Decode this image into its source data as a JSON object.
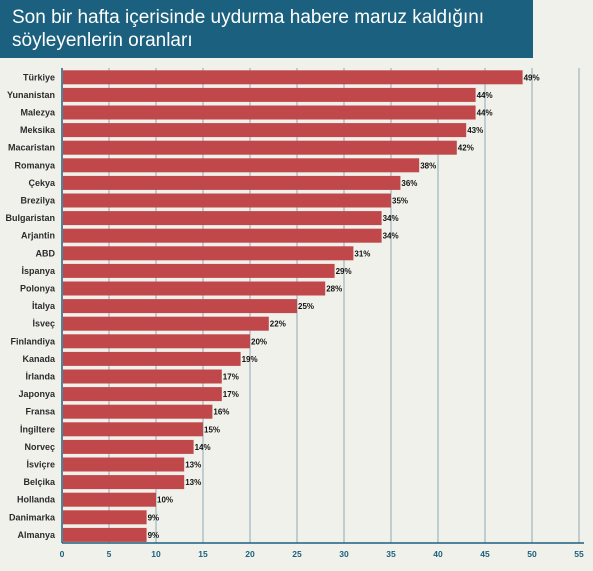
{
  "title": "Son bir hafta içerisinde uydurma habere maruz kaldığını söyleyenlerin oranları",
  "colors": {
    "bar": "#c0474a",
    "banner": "#1b607e",
    "grid": "#8fa9b5",
    "axis": "#1b607e",
    "background": "#f1f1ec"
  },
  "chart_data": {
    "type": "bar",
    "orientation": "horizontal",
    "title": "Son bir hafta içerisinde uydurma habere maruz kaldığını söyleyenlerin oranları",
    "categories": [
      "Türkiye",
      "Yunanistan",
      "Malezya",
      "Meksika",
      "Macaristan",
      "Romanya",
      "Çekya",
      "Brezilya",
      "Bulgaristan",
      "Arjantin",
      "ABD",
      "İspanya",
      "Polonya",
      "İtalya",
      "İsveç",
      "Finlandiya",
      "Kanada",
      "İrlanda",
      "Japonya",
      "Fransa",
      "İngiltere",
      "Norveç",
      "İsviçre",
      "Belçika",
      "Hollanda",
      "Danimarka",
      "Almanya"
    ],
    "values": [
      49,
      44,
      44,
      43,
      42,
      38,
      36,
      35,
      34,
      34,
      31,
      29,
      28,
      25,
      22,
      20,
      19,
      17,
      17,
      16,
      15,
      14,
      13,
      13,
      10,
      9,
      9
    ],
    "value_labels": [
      "49%",
      "44%",
      "44%",
      "43%",
      "42%",
      "38%",
      "36%",
      "35%",
      "34%",
      "34%",
      "31%",
      "29%",
      "28%",
      "25%",
      "22%",
      "20%",
      "19%",
      "17%",
      "17%",
      "16%",
      "15%",
      "14%",
      "13%",
      "13%",
      "10%",
      "9%",
      "9%"
    ],
    "xlim": [
      0,
      55
    ],
    "xticks": [
      0,
      5,
      10,
      15,
      20,
      25,
      30,
      35,
      40,
      45,
      50,
      55
    ],
    "grid": true,
    "xlabel": "",
    "ylabel": ""
  }
}
